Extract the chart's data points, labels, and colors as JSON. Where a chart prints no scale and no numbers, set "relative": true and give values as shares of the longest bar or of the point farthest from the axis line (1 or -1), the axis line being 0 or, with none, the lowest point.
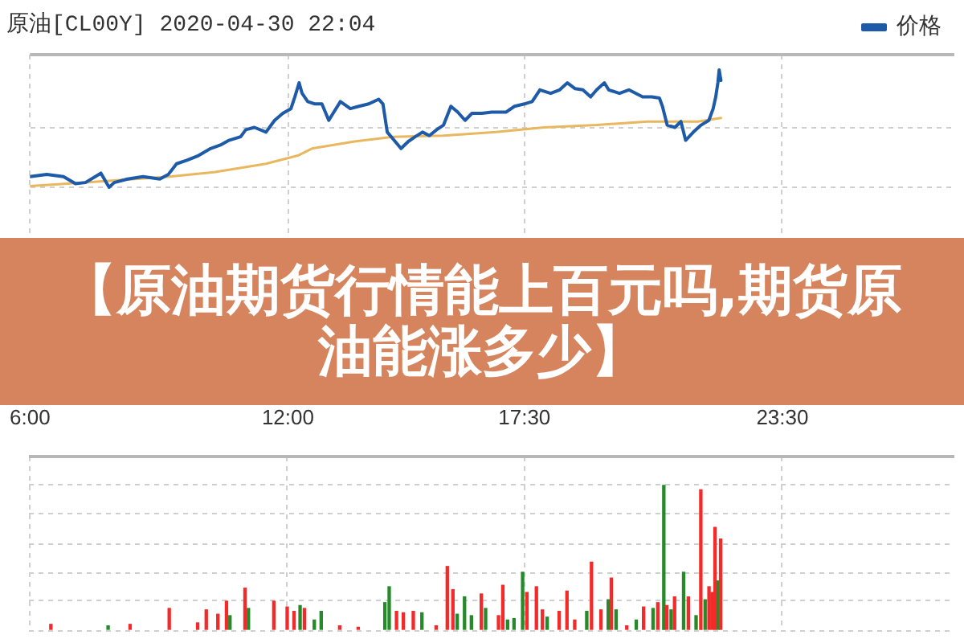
{
  "chart_data": [
    {
      "type": "line",
      "title": "原油[CL00Y] 2020-04-30 22:04",
      "annotations": [
        "【原油期货行情能上百元吗,期货原油能涨多少】"
      ],
      "relative": true,
      "xlim": [
        6,
        27.5
      ],
      "xticks": [
        {
          "value": 6,
          "label": "6:00"
        },
        {
          "value": 12,
          "label": "12:00"
        },
        {
          "value": 17.5,
          "label": "17:30"
        },
        {
          "value": 23.5,
          "label": "23:30"
        }
      ],
      "tick_labels": "x",
      "grid": true,
      "legend": "top right",
      "marker": "none",
      "line_style": "solid",
      "series": [
        {
          "name": "价格",
          "color": "#1d5aa8",
          "x": [
            6.0,
            6.39,
            6.78,
            7.06,
            7.29,
            7.65,
            7.84,
            7.96,
            8.27,
            8.63,
            9.02,
            9.22,
            9.41,
            9.65,
            9.92,
            10.2,
            10.43,
            10.63,
            10.9,
            11.02,
            11.22,
            11.49,
            11.69,
            11.88,
            12.07,
            12.16,
            12.26,
            12.33,
            12.46,
            12.63,
            12.79,
            12.95,
            13.05,
            13.22,
            13.45,
            13.65,
            13.88,
            14.11,
            14.21,
            14.31,
            14.47,
            14.63,
            14.8,
            14.96,
            15.13,
            15.29,
            15.46,
            15.62,
            15.79,
            15.95,
            16.12,
            16.28,
            16.51,
            16.74,
            17.07,
            17.27,
            17.5,
            17.68,
            17.86,
            18.11,
            18.32,
            18.5,
            18.68,
            18.86,
            19.04,
            19.18,
            19.36,
            19.46,
            19.71,
            19.93,
            20.25,
            20.46,
            20.64,
            20.71,
            20.82,
            21.0,
            21.14,
            21.25,
            21.43,
            21.61,
            21.79,
            21.89,
            21.95,
            22.0,
            22.03,
            22.07
          ],
          "values": [
            0.09,
            0.11,
            0.09,
            0.03,
            0.04,
            0.12,
            0,
            0.04,
            0.07,
            0.09,
            0.07,
            0.11,
            0.2,
            0.23,
            0.27,
            0.33,
            0.36,
            0.4,
            0.43,
            0.49,
            0.51,
            0.47,
            0.57,
            0.63,
            0.67,
            0.77,
            0.89,
            0.8,
            0.73,
            0.71,
            0.71,
            0.57,
            0.63,
            0.73,
            0.67,
            0.69,
            0.71,
            0.75,
            0.71,
            0.47,
            0.4,
            0.33,
            0.39,
            0.43,
            0.47,
            0.44,
            0.49,
            0.53,
            0.69,
            0.64,
            0.57,
            0.63,
            0.63,
            0.64,
            0.64,
            0.69,
            0.71,
            0.73,
            0.83,
            0.8,
            0.83,
            0.89,
            0.84,
            0.83,
            0.77,
            0.83,
            0.89,
            0.83,
            0.8,
            0.83,
            0.77,
            0.77,
            0.76,
            0.69,
            0.53,
            0.51,
            0.56,
            0.4,
            0.47,
            0.53,
            0.57,
            0.67,
            0.77,
            0.89,
            1,
            0.91
          ]
        },
        {
          "color": "#e8b75e",
          "x": [
            6.0,
            7.29,
            9.25,
            10.31,
            11.49,
            12.23,
            12.56,
            13.55,
            14.44,
            15.62,
            16.84,
            17.96,
            19.18,
            20.36,
            21.54,
            22.07
          ],
          "values": [
            0.01,
            0.04,
            0.09,
            0.13,
            0.2,
            0.27,
            0.33,
            0.39,
            0.43,
            0.44,
            0.47,
            0.51,
            0.53,
            0.56,
            0.56,
            0.59
          ]
        }
      ]
    },
    {
      "type": "bar",
      "relative": true,
      "xlim": [
        6,
        27.5
      ],
      "xticks": [
        {
          "value": 6,
          "label": null
        },
        {
          "value": 12,
          "label": null
        },
        {
          "value": 17.5,
          "label": null
        },
        {
          "value": 23.5,
          "label": null
        }
      ],
      "tick_labels": false,
      "grid": true,
      "series": [
        {
          "color": "#f42a2a",
          "x": [
            6.51,
            8.35,
            9.26,
            9.92,
            10.12,
            10.39,
            10.59,
            11.02,
            11.69,
            12.0,
            12.16,
            12.4,
            13.22,
            13.65,
            14.54,
            14.7,
            14.93,
            15.46,
            15.72,
            15.85,
            16.51,
            16.91,
            17.01,
            17.57,
            17.79,
            17.93,
            18.32,
            18.5,
            18.68,
            19.07,
            19.29,
            19.53,
            19.89,
            20.28,
            20.61,
            20.82,
            21.0,
            21.32,
            21.61,
            21.8,
            21.87,
            21.94,
            22.07
          ],
          "values": [
            0.04,
            0.04,
            0.15,
            0.05,
            0.14,
            0.11,
            0.2,
            0.29,
            0.2,
            0.16,
            0.13,
            0.15,
            0.03,
            0.02,
            0.13,
            0.12,
            0.13,
            0.03,
            0.44,
            0.28,
            0.25,
            0.1,
            0.31,
            0.26,
            0.3,
            0.14,
            0.13,
            0.27,
            0.07,
            0.47,
            0.14,
            0.36,
            0.03,
            0.16,
            0.19,
            0.17,
            0.23,
            0.23,
            0.97,
            0.3,
            0.26,
            0.71,
            0.63
          ]
        },
        {
          "color": "#268a2a",
          "x": [
            7.84,
            10.67,
            11.1,
            12.3,
            12.63,
            12.79,
            14.27,
            14.37,
            15.13,
            15.95,
            16.12,
            16.28,
            16.61,
            17.12,
            17.27,
            17.47,
            18.04,
            18.96,
            19.46,
            19.64,
            20.11,
            20.5,
            20.75,
            20.92,
            21.21,
            21.5,
            21.71,
            22.01
          ],
          "values": [
            0.03,
            0.1,
            0.15,
            0.17,
            0.07,
            0.13,
            0.19,
            0.3,
            0.12,
            0.11,
            0.23,
            0.1,
            0.15,
            0.07,
            0.08,
            0.4,
            0.09,
            0.13,
            0.21,
            0.14,
            0.07,
            0.15,
            1,
            0.14,
            0.4,
            0.1,
            0.21,
            0.34
          ]
        }
      ]
    }
  ]
}
